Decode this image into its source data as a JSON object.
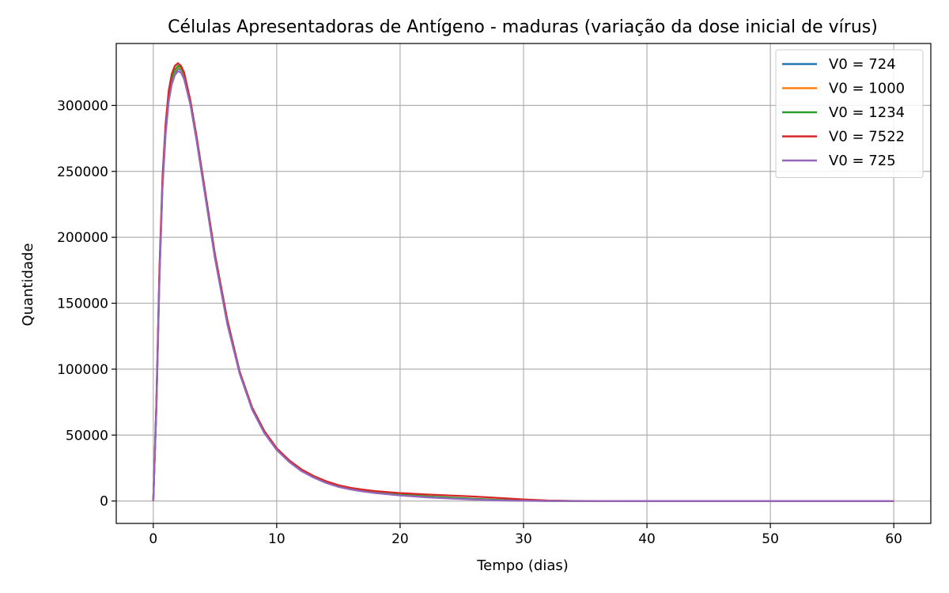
{
  "chart_data": {
    "type": "line",
    "title": "Células Apresentadoras de Antígeno - maduras (variação da dose inicial de vírus)",
    "xlabel": "Tempo (dias)",
    "ylabel": "Quantidade",
    "xlim": [
      -3,
      63
    ],
    "ylim": [
      -17000,
      347000
    ],
    "xticks": [
      0,
      10,
      20,
      30,
      40,
      50,
      60
    ],
    "xtick_labels": [
      "0",
      "10",
      "20",
      "30",
      "40",
      "50",
      "60"
    ],
    "yticks": [
      0,
      50000,
      100000,
      150000,
      200000,
      250000,
      300000
    ],
    "ytick_labels": [
      "0",
      "50000",
      "100000",
      "150000",
      "200000",
      "250000",
      "300000"
    ],
    "grid": true,
    "legend_position": "top-right",
    "x": [
      0,
      0.25,
      0.5,
      0.75,
      1,
      1.25,
      1.5,
      1.75,
      2,
      2.25,
      2.5,
      3,
      3.5,
      4,
      5,
      6,
      7,
      8,
      9,
      10,
      11,
      12,
      13,
      14,
      15,
      16,
      17,
      18,
      20,
      22,
      24,
      26,
      28,
      30,
      32,
      34,
      36,
      40,
      45,
      50,
      55,
      60
    ],
    "series": [
      {
        "name": "V0 = 724",
        "color": "#1f77b4",
        "values": [
          0,
          70000,
          170000,
          240000,
          280000,
          305000,
          318000,
          325000,
          328000,
          327000,
          322000,
          302000,
          275000,
          245000,
          185000,
          135000,
          97000,
          70000,
          52000,
          39000,
          30000,
          23000,
          18000,
          14000,
          11000,
          9000,
          7500,
          6300,
          4500,
          3200,
          2200,
          1300,
          600,
          200,
          80,
          40,
          20,
          0,
          0,
          0,
          0,
          0
        ]
      },
      {
        "name": "V0 = 1000",
        "color": "#ff7f0e",
        "values": [
          0,
          70500,
          171000,
          241000,
          281000,
          306000,
          319000,
          326000,
          329000,
          328000,
          323000,
          303000,
          276000,
          246000,
          186000,
          136000,
          97500,
          70500,
          52500,
          39300,
          30200,
          23200,
          18200,
          14200,
          11200,
          9200,
          7700,
          6500,
          4700,
          3400,
          2400,
          1500,
          700,
          250,
          90,
          40,
          20,
          0,
          0,
          0,
          0,
          0
        ]
      },
      {
        "name": "V0 = 1234",
        "color": "#2ca02c",
        "values": [
          0,
          71000,
          172000,
          242000,
          282000,
          307000,
          320000,
          327000,
          330000,
          329000,
          324000,
          304000,
          277000,
          247000,
          187000,
          137000,
          98000,
          71000,
          53000,
          39500,
          30400,
          23400,
          18400,
          14400,
          11400,
          9400,
          7900,
          6700,
          4900,
          3600,
          2600,
          1700,
          800,
          300,
          100,
          40,
          20,
          0,
          0,
          0,
          0,
          0
        ]
      },
      {
        "name": "V0 = 7522",
        "color": "#d62728",
        "values": [
          0,
          74000,
          176000,
          246000,
          286000,
          311000,
          324000,
          330000,
          332000,
          330000,
          325000,
          304000,
          277000,
          247000,
          187000,
          137000,
          98000,
          71000,
          53000,
          40000,
          31000,
          24000,
          19000,
          15000,
          12000,
          10000,
          8600,
          7500,
          6000,
          5000,
          4200,
          3400,
          2300,
          1200,
          400,
          100,
          30,
          0,
          0,
          0,
          0,
          0
        ]
      },
      {
        "name": "V0 = 725",
        "color": "#9467bd",
        "values": [
          0,
          69000,
          168000,
          238000,
          278000,
          303000,
          316000,
          323000,
          326000,
          325000,
          320000,
          301000,
          274000,
          244000,
          184000,
          134000,
          96500,
          69500,
          51500,
          38700,
          29700,
          22700,
          17700,
          13700,
          10700,
          8700,
          7200,
          6000,
          4200,
          2900,
          1900,
          1100,
          450,
          150,
          60,
          30,
          15,
          0,
          0,
          0,
          0,
          0
        ]
      }
    ]
  }
}
